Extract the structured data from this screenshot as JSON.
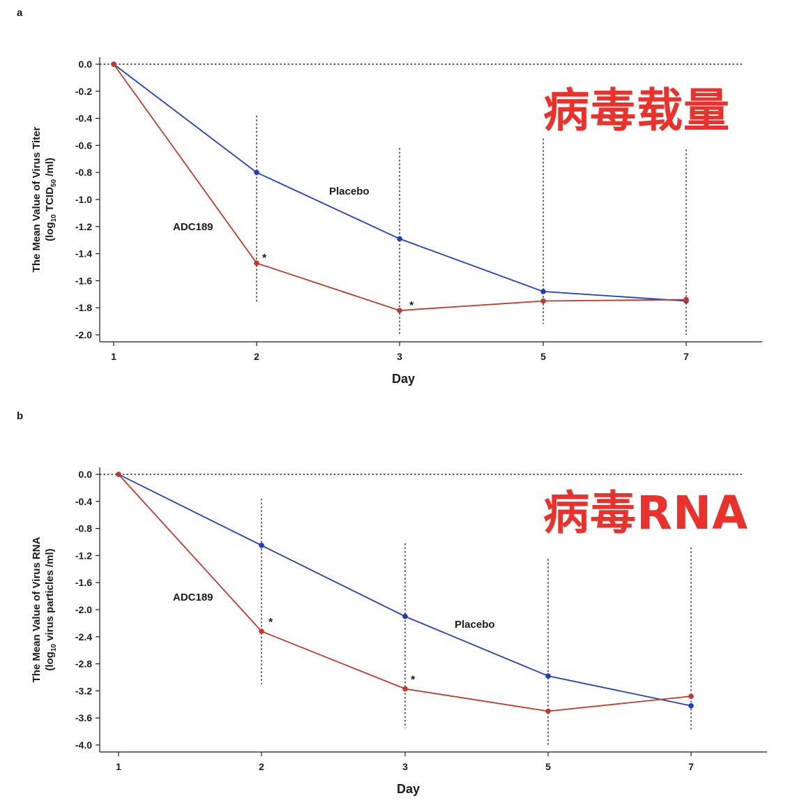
{
  "panels": [
    {
      "letter": "a",
      "overlay_text": "病毒载量",
      "chart_data": {
        "type": "line",
        "categories": [
          "1",
          "2",
          "3",
          "5",
          "7"
        ],
        "xlabel": "Day",
        "ylabel_line1": "The Mean Value of Virus Titer",
        "ylabel_line2_pre": "(log",
        "ylabel_line2_sub1": "10",
        "ylabel_line2_mid": " TCID",
        "ylabel_line2_sub2": "50",
        "ylabel_line2_post": " /ml)",
        "ylim": [
          -2.0,
          0.0
        ],
        "yticks": [
          "0.0",
          "-0.2",
          "-0.4",
          "-0.6",
          "-0.8",
          "-1.0",
          "-1.2",
          "-1.4",
          "-1.6",
          "-1.8",
          "-2.0"
        ],
        "ytick_values": [
          0.0,
          -0.2,
          -0.4,
          -0.6,
          -0.8,
          -1.0,
          -1.2,
          -1.4,
          -1.6,
          -1.8,
          -2.0
        ],
        "series": [
          {
            "name": "Placebo",
            "color": "#1f3fbf",
            "values": [
              0.0,
              -0.8,
              -1.29,
              -1.68,
              -1.75
            ]
          },
          {
            "name": "ADC189",
            "color": "#c0392b",
            "values": [
              0.0,
              -1.47,
              -1.82,
              -1.75,
              -1.74
            ]
          }
        ],
        "significance": [
          "",
          "*",
          "*",
          "",
          ""
        ],
        "star_mark": "*",
        "errorbar_tops": [
          null,
          -0.38,
          -0.62,
          -0.55,
          -0.63
        ],
        "errorbar_bottoms": [
          null,
          -1.77,
          -2.0,
          -1.92,
          -2.0
        ],
        "reference_line": 0.0
      }
    },
    {
      "letter": "b",
      "overlay_text": "病毒RNA",
      "chart_data": {
        "type": "line",
        "categories": [
          "1",
          "2",
          "3",
          "5",
          "7"
        ],
        "xlabel": "Day",
        "ylabel_line1": "The Mean Value of Virus RNA",
        "ylabel_line2_pre": "(log",
        "ylabel_line2_sub1": "10",
        "ylabel_line2_mid": " virus particles /ml)",
        "ylabel_line2_sub2": "",
        "ylabel_line2_post": "",
        "ylim": [
          -4.0,
          0.0
        ],
        "yticks": [
          "0.0",
          "-0.4",
          "-0.8",
          "-1.2",
          "-1.6",
          "-2.0",
          "-2.4",
          "-2.8",
          "-3.2",
          "-3.6",
          "-4.0"
        ],
        "ytick_values": [
          0.0,
          -0.4,
          -0.8,
          -1.2,
          -1.6,
          -2.0,
          -2.4,
          -2.8,
          -3.2,
          -3.6,
          -4.0
        ],
        "series": [
          {
            "name": "Placebo",
            "color": "#1f3fbf",
            "values": [
              0.0,
              -1.05,
              -2.1,
              -2.98,
              -3.42
            ]
          },
          {
            "name": "ADC189",
            "color": "#c0392b",
            "values": [
              0.0,
              -2.32,
              -3.17,
              -3.5,
              -3.28
            ]
          }
        ],
        "significance": [
          "",
          "*",
          "*",
          "",
          ""
        ],
        "star_mark": "*",
        "errorbar_tops": [
          null,
          -0.36,
          -1.02,
          -1.25,
          -1.08
        ],
        "errorbar_bottoms": [
          null,
          -3.1,
          -3.75,
          -4.0,
          -3.8
        ],
        "reference_line": 0.0
      }
    }
  ]
}
